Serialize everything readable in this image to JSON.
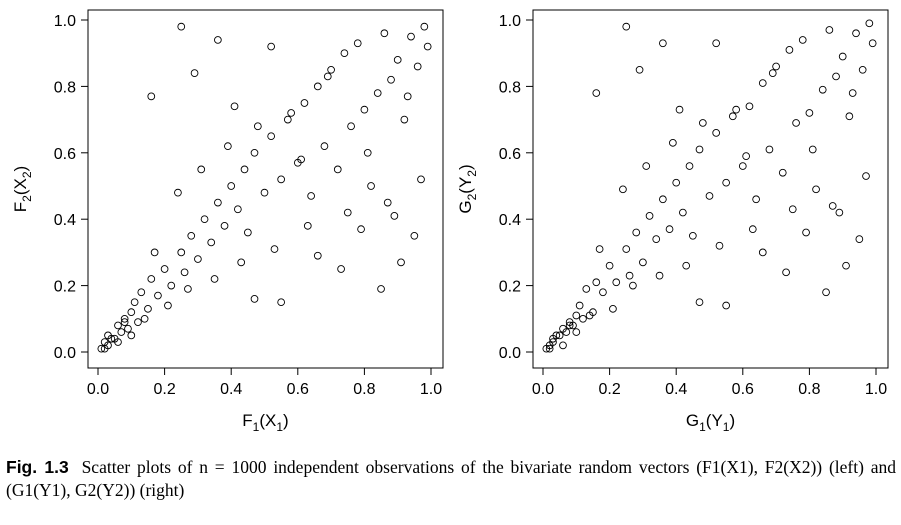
{
  "chart_data": [
    {
      "type": "scatter",
      "title": "",
      "xlabel": "F1(X1)",
      "ylabel": "F2(X2)",
      "xlabel_parts": [
        [
          "F",
          "base"
        ],
        [
          "1",
          "sub"
        ],
        [
          "(X",
          "base"
        ],
        [
          "1",
          "sub"
        ],
        [
          ")",
          "base"
        ]
      ],
      "ylabel_parts": [
        [
          "F",
          "base"
        ],
        [
          "2",
          "sub"
        ],
        [
          "(X",
          "base"
        ],
        [
          "2",
          "sub"
        ],
        [
          ")",
          "base"
        ]
      ],
      "xlim": [
        0,
        1
      ],
      "ylim": [
        0,
        1
      ],
      "xticks": [
        "0.0",
        "0.2",
        "0.4",
        "0.6",
        "0.8",
        "1.0"
      ],
      "yticks": [
        "0.0",
        "0.2",
        "0.4",
        "0.6",
        "0.8",
        "1.0"
      ],
      "grid": false,
      "marker": "open-circle",
      "n": 1000,
      "series": [
        {
          "x": [
            0.01,
            0.02,
            0.03,
            0.03,
            0.05,
            0.06,
            0.07,
            0.08,
            0.09,
            0.1,
            0.11,
            0.12,
            0.13,
            0.15,
            0.16,
            0.18,
            0.2,
            0.22,
            0.25,
            0.26,
            0.28,
            0.3,
            0.32,
            0.34,
            0.36,
            0.38,
            0.4,
            0.42,
            0.44,
            0.45,
            0.47,
            0.5,
            0.52,
            0.55,
            0.57,
            0.6,
            0.62,
            0.64,
            0.66,
            0.68,
            0.7,
            0.72,
            0.74,
            0.76,
            0.78,
            0.8,
            0.82,
            0.84,
            0.86,
            0.88,
            0.9,
            0.92,
            0.94,
            0.96,
            0.98,
            0.99,
            0.02,
            0.04,
            0.06,
            0.08,
            0.1,
            0.14,
            0.17,
            0.21,
            0.24,
            0.27,
            0.31,
            0.35,
            0.39,
            0.43,
            0.48,
            0.53,
            0.58,
            0.63,
            0.69,
            0.75,
            0.81,
            0.87,
            0.93,
            0.97,
            0.25,
            0.36,
            0.47,
            0.55,
            0.66,
            0.73,
            0.85,
            0.91,
            0.16,
            0.29,
            0.41,
            0.52,
            0.61,
            0.79,
            0.89,
            0.95
          ],
          "y": [
            0.01,
            0.03,
            0.02,
            0.05,
            0.04,
            0.08,
            0.06,
            0.1,
            0.07,
            0.12,
            0.15,
            0.09,
            0.18,
            0.13,
            0.22,
            0.17,
            0.25,
            0.2,
            0.3,
            0.24,
            0.35,
            0.28,
            0.4,
            0.33,
            0.45,
            0.38,
            0.5,
            0.43,
            0.55,
            0.36,
            0.6,
            0.48,
            0.65,
            0.52,
            0.7,
            0.57,
            0.75,
            0.47,
            0.8,
            0.62,
            0.85,
            0.55,
            0.9,
            0.68,
            0.93,
            0.73,
            0.5,
            0.78,
            0.96,
            0.82,
            0.88,
            0.7,
            0.95,
            0.86,
            0.98,
            0.92,
            0.01,
            0.04,
            0.03,
            0.09,
            0.05,
            0.1,
            0.3,
            0.14,
            0.48,
            0.19,
            0.55,
            0.22,
            0.62,
            0.27,
            0.68,
            0.31,
            0.72,
            0.38,
            0.83,
            0.42,
            0.6,
            0.45,
            0.77,
            0.52,
            0.98,
            0.94,
            0.16,
            0.15,
            0.29,
            0.25,
            0.19,
            0.27,
            0.77,
            0.84,
            0.74,
            0.92,
            0.58,
            0.37,
            0.41,
            0.35
          ]
        }
      ]
    },
    {
      "type": "scatter",
      "title": "",
      "xlabel": "G1(Y1)",
      "ylabel": "G2(Y2)",
      "xlabel_parts": [
        [
          "G",
          "base"
        ],
        [
          "1",
          "sub"
        ],
        [
          "(Y",
          "base"
        ],
        [
          "1",
          "sub"
        ],
        [
          ")",
          "base"
        ]
      ],
      "ylabel_parts": [
        [
          "G",
          "base"
        ],
        [
          "2",
          "sub"
        ],
        [
          "(Y",
          "base"
        ],
        [
          "2",
          "sub"
        ],
        [
          ")",
          "base"
        ]
      ],
      "xlim": [
        0,
        1
      ],
      "ylim": [
        0,
        1
      ],
      "xticks": [
        "0.0",
        "0.2",
        "0.4",
        "0.6",
        "0.8",
        "1.0"
      ],
      "yticks": [
        "0.0",
        "0.2",
        "0.4",
        "0.6",
        "0.8",
        "1.0"
      ],
      "grid": false,
      "marker": "open-circle",
      "n": 1000,
      "series": [
        {
          "x": [
            0.01,
            0.02,
            0.03,
            0.03,
            0.05,
            0.06,
            0.07,
            0.08,
            0.09,
            0.1,
            0.11,
            0.12,
            0.13,
            0.15,
            0.16,
            0.18,
            0.2,
            0.22,
            0.25,
            0.26,
            0.28,
            0.3,
            0.32,
            0.34,
            0.36,
            0.38,
            0.4,
            0.42,
            0.44,
            0.45,
            0.47,
            0.5,
            0.52,
            0.55,
            0.57,
            0.6,
            0.62,
            0.64,
            0.66,
            0.68,
            0.7,
            0.72,
            0.74,
            0.76,
            0.78,
            0.8,
            0.82,
            0.84,
            0.86,
            0.88,
            0.9,
            0.92,
            0.94,
            0.96,
            0.98,
            0.99,
            0.02,
            0.04,
            0.06,
            0.08,
            0.1,
            0.14,
            0.17,
            0.21,
            0.24,
            0.27,
            0.31,
            0.35,
            0.39,
            0.43,
            0.48,
            0.53,
            0.58,
            0.63,
            0.69,
            0.75,
            0.81,
            0.87,
            0.93,
            0.97,
            0.25,
            0.36,
            0.47,
            0.55,
            0.66,
            0.73,
            0.85,
            0.91,
            0.16,
            0.29,
            0.41,
            0.52,
            0.61,
            0.79,
            0.89,
            0.95
          ],
          "y": [
            0.01,
            0.02,
            0.03,
            0.04,
            0.05,
            0.07,
            0.06,
            0.09,
            0.08,
            0.11,
            0.14,
            0.1,
            0.19,
            0.12,
            0.21,
            0.18,
            0.26,
            0.21,
            0.31,
            0.23,
            0.36,
            0.27,
            0.41,
            0.34,
            0.46,
            0.37,
            0.51,
            0.42,
            0.56,
            0.35,
            0.61,
            0.47,
            0.66,
            0.51,
            0.71,
            0.56,
            0.74,
            0.46,
            0.81,
            0.61,
            0.86,
            0.54,
            0.91,
            0.69,
            0.94,
            0.72,
            0.49,
            0.79,
            0.97,
            0.83,
            0.89,
            0.71,
            0.96,
            0.85,
            0.99,
            0.93,
            0.01,
            0.05,
            0.02,
            0.08,
            0.06,
            0.11,
            0.31,
            0.13,
            0.49,
            0.2,
            0.56,
            0.23,
            0.63,
            0.26,
            0.69,
            0.32,
            0.73,
            0.37,
            0.84,
            0.43,
            0.61,
            0.44,
            0.78,
            0.53,
            0.98,
            0.93,
            0.15,
            0.14,
            0.3,
            0.24,
            0.18,
            0.26,
            0.78,
            0.85,
            0.73,
            0.93,
            0.59,
            0.36,
            0.42,
            0.34
          ]
        }
      ]
    }
  ],
  "caption": {
    "label": "Fig. 1.3",
    "text": "Scatter plots of n = 1000 independent observations of the bivariate random vectors (F1(X1), F2(X2)) (left) and (G1(Y1), G2(Y2)) (right)"
  }
}
